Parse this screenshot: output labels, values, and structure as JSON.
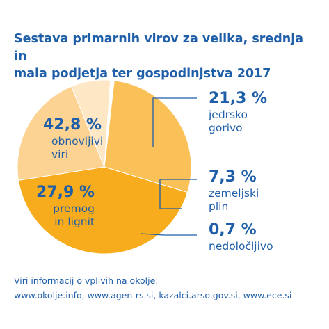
{
  "title_line1": "Sestava primarnih virov za velika, srednja in",
  "title_line2": "mala podjetja ter gospodinjstva 2017",
  "chart_data": {
    "type": "pie",
    "title": "Sestava primarnih virov za velika, srednja in mala podjetja ter gospodinjstva 2017",
    "unit": "%",
    "slices": [
      {
        "value": 42.8,
        "value_label": "42,8 %",
        "label_lines": [
          "obnovljivi",
          "viri"
        ],
        "color": "#f6ac1c"
      },
      {
        "value": 21.3,
        "value_label": "21,3 %",
        "label_lines": [
          "jedrsko",
          "gorivo"
        ],
        "color": "#fcd392"
      },
      {
        "value": 7.3,
        "value_label": "7,3 %",
        "label_lines": [
          "zemeljski",
          "plin"
        ],
        "color": "#fde7c4"
      },
      {
        "value": 0.7,
        "value_label": "0,7 %",
        "label_lines": [
          "nedoločljivo"
        ],
        "color": "#ffffff"
      },
      {
        "value": 27.9,
        "value_label": "27,9 %",
        "label_lines": [
          "premog",
          "in lignit"
        ],
        "color": "#fbc159"
      }
    ]
  },
  "colors": {
    "title": "#1f5ea8",
    "label_value": "#1f5ea8",
    "label_text": "#1f5ea8",
    "leader": "#1f5ea8"
  },
  "source": {
    "line1": "Viri informacij o vplivih na okolje:",
    "line2": "www.okolje.info, www.agen-rs.si, kazalci.arso.gov.si, www.ece.si"
  }
}
